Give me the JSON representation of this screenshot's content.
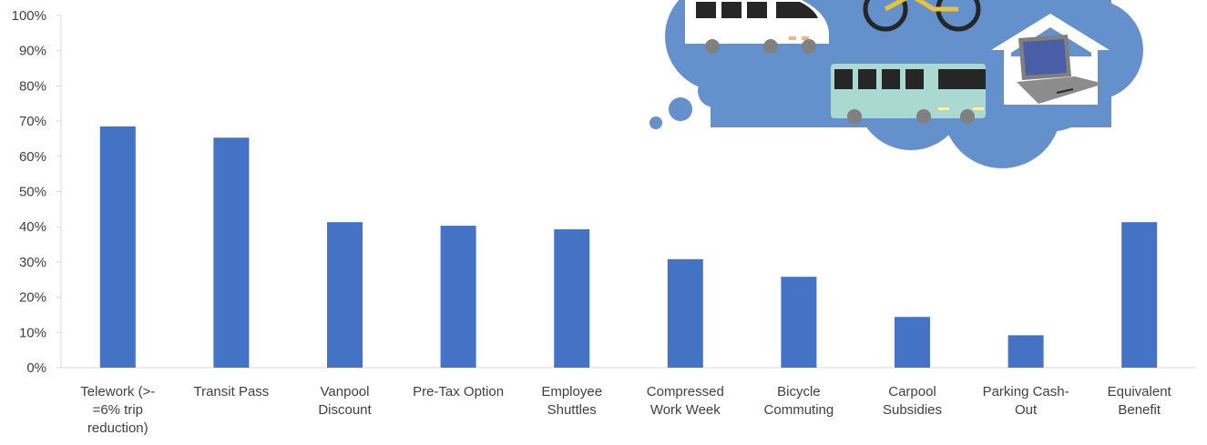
{
  "chart_data": {
    "type": "bar",
    "title": "",
    "xlabel": "",
    "ylabel": "",
    "ylim": [
      0,
      100
    ],
    "y_ticks": [
      "0%",
      "10%",
      "20%",
      "30%",
      "40%",
      "50%",
      "60%",
      "70%",
      "80%",
      "90%",
      "100%"
    ],
    "grid": false,
    "legend": "none",
    "bar_color": "#4472C4",
    "categories": [
      [
        "Telework (>-",
        "=6% trip",
        "reduction)"
      ],
      [
        "Transit Pass"
      ],
      [
        "Vanpool",
        "Discount"
      ],
      [
        "Pre-Tax Option"
      ],
      [
        "Employee",
        "Shuttles"
      ],
      [
        "Compressed",
        "Work Week"
      ],
      [
        "Bicycle",
        "Commuting"
      ],
      [
        "Carpool",
        "Subsidies"
      ],
      [
        "Parking Cash-",
        "Out"
      ],
      [
        "Equivalent",
        "Benefit"
      ]
    ],
    "values": [
      68.5,
      65.3,
      41.3,
      40.3,
      39.3,
      30.8,
      25.8,
      14.4,
      9.2,
      41.3
    ]
  },
  "illustration": {
    "cloud_color": "#6490CC",
    "icons": [
      "van-icon",
      "bicycle-icon",
      "bus-icon",
      "house-icon",
      "laptop-icon"
    ]
  }
}
